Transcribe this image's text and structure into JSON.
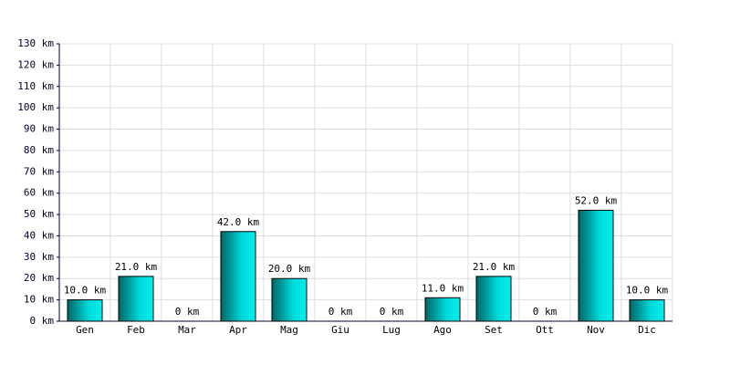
{
  "chart_data": {
    "type": "bar",
    "categories": [
      "Gen",
      "Feb",
      "Mar",
      "Apr",
      "Mag",
      "Giu",
      "Lug",
      "Ago",
      "Set",
      "Ott",
      "Nov",
      "Dic"
    ],
    "values": [
      10,
      21,
      0,
      42,
      20,
      0,
      0,
      11,
      21,
      0,
      52,
      10
    ],
    "value_labels": [
      "10.0 km",
      "21.0 km",
      "0 km",
      "42.0 km",
      "20.0 km",
      "0 km",
      "0 km",
      "11.0 km",
      "21.0 km",
      "0 km",
      "52.0 km",
      "10.0 km"
    ],
    "color": "#00d8d8",
    "ylim": [
      0,
      130
    ],
    "yticks": [
      {
        "value": 0,
        "label": "0 km"
      },
      {
        "value": 10,
        "label": "10 km"
      },
      {
        "value": 20,
        "label": "20 km"
      },
      {
        "value": 30,
        "label": "30 km"
      },
      {
        "value": 40,
        "label": "40 km"
      },
      {
        "value": 50,
        "label": "50 km"
      },
      {
        "value": 60,
        "label": "60 km"
      },
      {
        "value": 70,
        "label": "70 km"
      },
      {
        "value": 80,
        "label": "80 km"
      },
      {
        "value": 90,
        "label": "90 km"
      },
      {
        "value": 100,
        "label": "100 km"
      },
      {
        "value": 110,
        "label": "110 km"
      },
      {
        "value": 120,
        "label": "120 km"
      },
      {
        "value": 130,
        "label": "130 km"
      }
    ],
    "grid": true
  }
}
